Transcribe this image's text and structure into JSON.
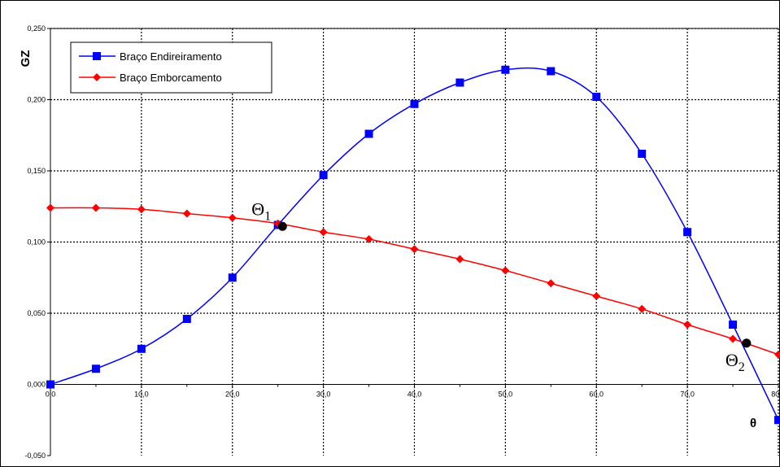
{
  "chart_data": {
    "type": "line",
    "title": "",
    "xlabel": "θ",
    "ylabel": "GZ",
    "xlim": [
      0,
      80
    ],
    "ylim": [
      -0.05,
      0.25
    ],
    "x_ticks": [
      0,
      10,
      20,
      30,
      40,
      50,
      60,
      70,
      80
    ],
    "x_tick_labels": [
      "0,0",
      "10,0",
      "20,0",
      "30,0",
      "40,0",
      "50,0",
      "60,0",
      "70,0",
      "80,0"
    ],
    "y_ticks": [
      -0.05,
      0,
      0.05,
      0.1,
      0.15,
      0.2,
      0.25
    ],
    "y_tick_labels": [
      "-0,050",
      "0,000",
      "0,050",
      "0,100",
      "0,150",
      "0,200",
      "0,250"
    ],
    "grid": true,
    "legend_position": "top-left",
    "series": [
      {
        "name": "Braço Endireiramento",
        "color": "#0000ff",
        "marker": "square",
        "x": [
          0,
          5,
          10,
          15,
          20,
          25,
          30,
          35,
          40,
          45,
          50,
          55,
          60,
          65,
          70,
          75,
          80
        ],
        "y": [
          0.0,
          0.011,
          0.025,
          0.046,
          0.075,
          0.112,
          0.147,
          0.176,
          0.197,
          0.212,
          0.221,
          0.22,
          0.202,
          0.162,
          0.107,
          0.042,
          -0.025
        ]
      },
      {
        "name": "Braço Emborcamento",
        "color": "#ff0000",
        "marker": "diamond",
        "x": [
          0,
          5,
          10,
          15,
          20,
          25,
          30,
          35,
          40,
          45,
          50,
          55,
          60,
          65,
          70,
          75,
          80
        ],
        "y": [
          0.124,
          0.124,
          0.123,
          0.12,
          0.117,
          0.113,
          0.107,
          0.102,
          0.095,
          0.088,
          0.08,
          0.071,
          0.062,
          0.053,
          0.042,
          0.032,
          0.021
        ]
      }
    ],
    "annotations": [
      {
        "label": "Θ",
        "sub": "1",
        "x": 25.5,
        "y": 0.111
      },
      {
        "label": "Θ",
        "sub": "2",
        "x": 76.5,
        "y": 0.029
      }
    ]
  }
}
